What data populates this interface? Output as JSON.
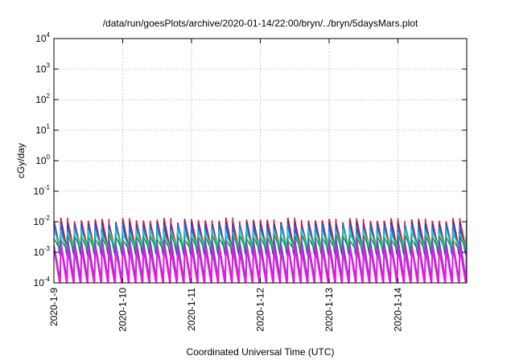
{
  "chart_data": {
    "type": "line",
    "title": "/data/run/goesPlots/archive/2020-01-14/22:00/bryn/../bryn/5daysMars.plot",
    "xlabel": "Coordinated Universal Time (UTC)",
    "ylabel": "cGy/day",
    "yscale": "log",
    "ylim": [
      0.0001,
      10000
    ],
    "xlim": [
      "2020-01-09T00:00",
      "2020-01-15T00:00"
    ],
    "grid": true,
    "legend": "none",
    "y_ticks": [
      {
        "base": "10",
        "exp": "-4",
        "value": 0.0001
      },
      {
        "base": "10",
        "exp": "-3",
        "value": 0.001
      },
      {
        "base": "10",
        "exp": "-2",
        "value": 0.01
      },
      {
        "base": "10",
        "exp": "-1",
        "value": 0.1
      },
      {
        "base": "10",
        "exp": "0",
        "value": 1
      },
      {
        "base": "10",
        "exp": "1",
        "value": 10
      },
      {
        "base": "10",
        "exp": "2",
        "value": 100
      },
      {
        "base": "10",
        "exp": "3",
        "value": 1000
      },
      {
        "base": "10",
        "exp": "4",
        "value": 10000
      }
    ],
    "x_ticks": [
      {
        "label": "2020-1-9",
        "date": "2020-01-09"
      },
      {
        "label": "2020-1-10",
        "date": "2020-01-10"
      },
      {
        "label": "2020-1-11",
        "date": "2020-01-11"
      },
      {
        "label": "2020-1-12",
        "date": "2020-01-12"
      },
      {
        "label": "2020-1-13",
        "date": "2020-01-13"
      },
      {
        "label": "2020-1-14",
        "date": "2020-01-14"
      }
    ],
    "sawtooth_period_hours": 2.4,
    "series": [
      {
        "color": "#e8101c",
        "peak": 0.011,
        "trough": 0.0013
      },
      {
        "color": "#1a3cd8",
        "peak": 0.0085,
        "trough": 0.0008
      },
      {
        "color": "#1e7ad8",
        "peak": 0.0068,
        "trough": 0.0011
      },
      {
        "color": "#18c8dc",
        "peak": 0.0048,
        "trough": 0.0015
      },
      {
        "color": "#2ea02e",
        "peak": 0.0032,
        "trough": 0.0012
      },
      {
        "color": "#4a58c0",
        "peak": 0.0024,
        "trough": 0.00013
      },
      {
        "color": "#9a38c8",
        "peak": 0.0018,
        "trough": 0.00011
      },
      {
        "color": "#e818e0",
        "peak": 0.0014,
        "trough": 8.5e-05
      }
    ]
  }
}
